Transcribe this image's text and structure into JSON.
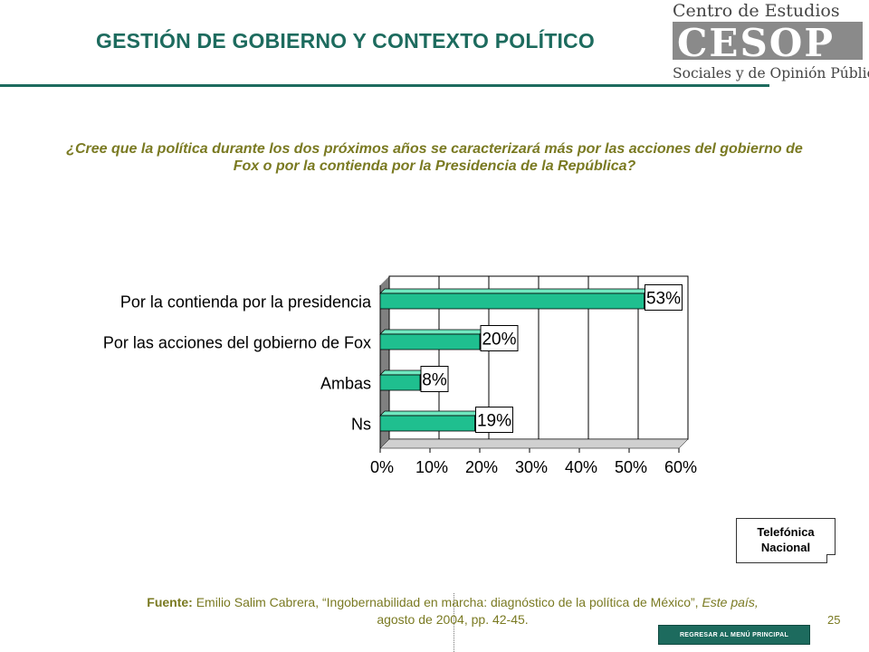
{
  "header": {
    "title": "GESTIÓN DE GOBIERNO Y CONTEXTO POLÍTICO",
    "logo_line1": "Centro de Estudios",
    "logo_mark": "CESOP",
    "logo_line2": "Sociales y de Opinión Pública"
  },
  "question": "¿Cree que la política durante los dos próximos años se caracterizará más por las acciones del gobierno de Fox o por la contienda por la Presidencia de la República?",
  "chart_data": {
    "type": "bar",
    "orientation": "horizontal",
    "categories": [
      "Por la contienda por la presidencia",
      "Por las acciones del gobierno de Fox",
      "Ambas",
      "Ns"
    ],
    "values": [
      53,
      20,
      8,
      19
    ],
    "data_labels": [
      "53%",
      "20%",
      "8%",
      "19%"
    ],
    "xlim": [
      0,
      60
    ],
    "x_ticks": [
      "0%",
      "10%",
      "20%",
      "30%",
      "40%",
      "50%",
      "60%"
    ],
    "grid": true,
    "bar_color": "#1fbf8f",
    "title": "",
    "xlabel": "",
    "ylabel": ""
  },
  "badge": {
    "line1": "Telefónica",
    "line2": "Nacional"
  },
  "source": {
    "label": "Fuente:",
    "author": "Emilio Salim Cabrera,",
    "article": " “Ingobernabilidad en marcha: diagnóstico de la política de México”, ",
    "publication": "Este país,",
    "date_pages": "agosto de 2004, pp. 42-45."
  },
  "footer": {
    "page_number": "25",
    "back_label": "REGRESAR AL MENÚ PRINCIPAL"
  }
}
